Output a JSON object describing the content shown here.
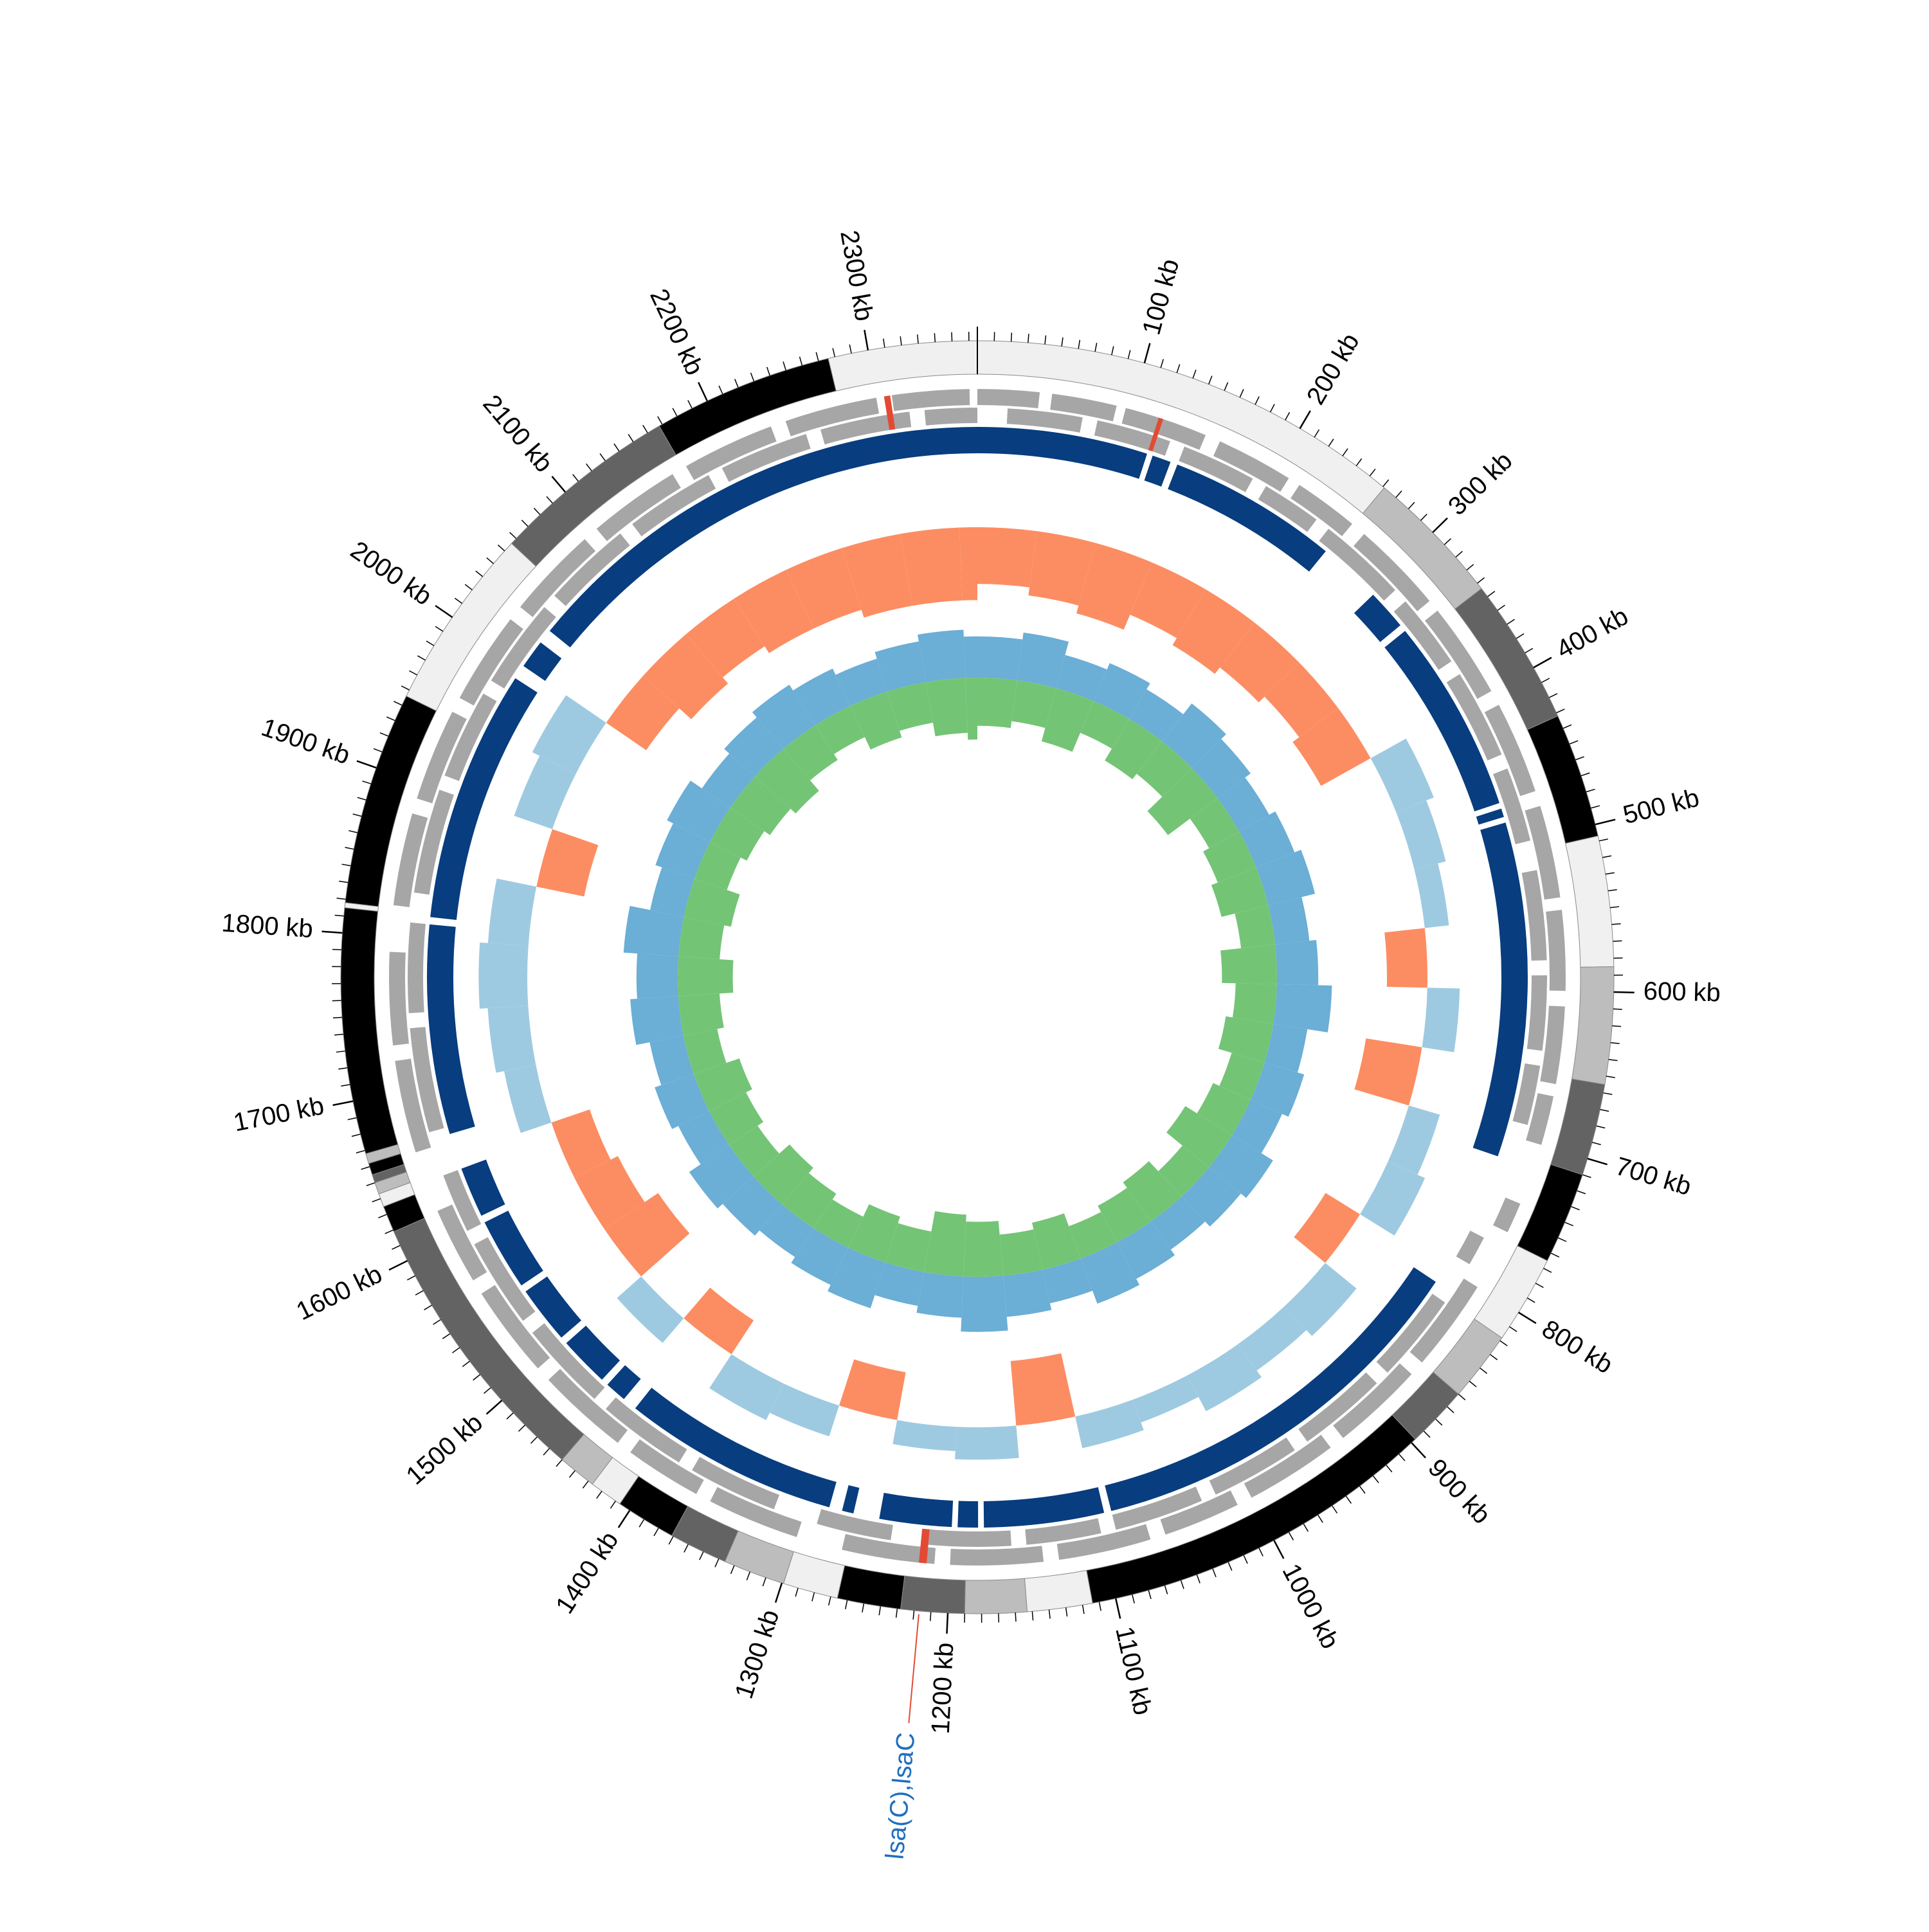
{
  "chart_data": {
    "type": "circular-genome",
    "xlim": [
      0,
      2365
    ],
    "xticks": [
      {
        "value": 100,
        "label": "100 kb"
      },
      {
        "value": 200,
        "label": "200 kb"
      },
      {
        "value": 300,
        "label": "300 kb"
      },
      {
        "value": 400,
        "label": "400 kb"
      },
      {
        "value": 500,
        "label": "500 kb"
      },
      {
        "value": 600,
        "label": "600 kb"
      },
      {
        "value": 700,
        "label": "700 kb"
      },
      {
        "value": 800,
        "label": "800 kb"
      },
      {
        "value": 900,
        "label": "900 kb"
      },
      {
        "value": 1000,
        "label": "1000 kb"
      },
      {
        "value": 1100,
        "label": "1100 kb"
      },
      {
        "value": 1200,
        "label": "1200 kb"
      },
      {
        "value": 1300,
        "label": "1300 kb"
      },
      {
        "value": 1400,
        "label": "1400 kb"
      },
      {
        "value": 1500,
        "label": "1500 kb"
      },
      {
        "value": 1600,
        "label": "1600 kb"
      },
      {
        "value": 1700,
        "label": "1700 kb"
      },
      {
        "value": 1800,
        "label": "1800 kb"
      },
      {
        "value": 1900,
        "label": "1900 kb"
      },
      {
        "value": 2000,
        "label": "2000 kb"
      },
      {
        "value": 2100,
        "label": "2100 kb"
      },
      {
        "value": 2200,
        "label": "2200 kb"
      },
      {
        "value": 2300,
        "label": "2300 kb"
      }
    ],
    "minor_ticks_every": 10,
    "contigs": [
      {
        "start": 0,
        "end": 261,
        "color": "#f0f0f0"
      },
      {
        "start": 261,
        "end": 344,
        "color": "#bdbdbd"
      },
      {
        "start": 344,
        "end": 432,
        "color": "#636363"
      },
      {
        "start": 432,
        "end": 507,
        "color": "#000000"
      },
      {
        "start": 507,
        "end": 585,
        "color": "#f0f0f0"
      },
      {
        "start": 585,
        "end": 655,
        "color": "#bdbdbd"
      },
      {
        "start": 655,
        "end": 710,
        "color": "#636363"
      },
      {
        "start": 710,
        "end": 765,
        "color": "#000000"
      },
      {
        "start": 765,
        "end": 818,
        "color": "#f0f0f0"
      },
      {
        "start": 818,
        "end": 860,
        "color": "#bdbdbd"
      },
      {
        "start": 860,
        "end": 897,
        "color": "#636363"
      },
      {
        "start": 897,
        "end": 1114,
        "color": "#000000"
      },
      {
        "start": 1114,
        "end": 1153,
        "color": "#f0f0f0"
      },
      {
        "start": 1153,
        "end": 1190,
        "color": "#bdbdbd"
      },
      {
        "start": 1190,
        "end": 1228,
        "color": "#636363"
      },
      {
        "start": 1228,
        "end": 1266,
        "color": "#000000"
      },
      {
        "start": 1266,
        "end": 1299,
        "color": "#f0f0f0"
      },
      {
        "start": 1299,
        "end": 1336,
        "color": "#bdbdbd"
      },
      {
        "start": 1336,
        "end": 1371,
        "color": "#636363"
      },
      {
        "start": 1371,
        "end": 1407,
        "color": "#000000"
      },
      {
        "start": 1407,
        "end": 1427,
        "color": "#f0f0f0"
      },
      {
        "start": 1427,
        "end": 1450,
        "color": "#bdbdbd"
      },
      {
        "start": 1450,
        "end": 1619,
        "color": "#636363"
      },
      {
        "start": 1619,
        "end": 1635,
        "color": "#000000"
      },
      {
        "start": 1635,
        "end": 1643,
        "color": "#f0f0f0"
      },
      {
        "start": 1643,
        "end": 1650,
        "color": "#bdbdbd"
      },
      {
        "start": 1650,
        "end": 1655,
        "color": "#636363"
      },
      {
        "start": 1655,
        "end": 1662,
        "color": "#000000"
      },
      {
        "start": 1662,
        "end": 1668,
        "color": "#bdbdbd"
      },
      {
        "start": 1668,
        "end": 1815,
        "color": "#000000"
      },
      {
        "start": 1815,
        "end": 1818,
        "color": "#f0f0f0"
      },
      {
        "start": 1818,
        "end": 1946,
        "color": "#000000"
      },
      {
        "start": 1946,
        "end": 2056,
        "color": "#f0f0f0"
      },
      {
        "start": 2056,
        "end": 2168,
        "color": "#636363"
      },
      {
        "start": 2168,
        "end": 2276,
        "color": "#000000"
      },
      {
        "start": 2276,
        "end": 2365,
        "color": "#f0f0f0"
      }
    ],
    "genes_forward": {
      "color": "#a6a6a6",
      "blocks": [
        [
          0,
          40
        ],
        [
          48,
          90
        ],
        [
          96,
          150
        ],
        [
          160,
          210
        ],
        [
          218,
          260
        ],
        [
          270,
          330
        ],
        [
          338,
          400
        ],
        [
          410,
          470
        ],
        [
          480,
          540
        ],
        [
          548,
          600
        ],
        [
          610,
          660
        ],
        [
          668,
          700
        ],
        [
          740,
          760
        ],
        [
          800,
          860
        ],
        [
          870,
          930
        ],
        [
          940,
          1000
        ],
        [
          1010,
          1060
        ],
        [
          1070,
          1130
        ],
        [
          1140,
          1200
        ],
        [
          1210,
          1270
        ],
        [
          1300,
          1360
        ],
        [
          1370,
          1420
        ],
        [
          1430,
          1490
        ],
        [
          1500,
          1560
        ],
        [
          1570,
          1620
        ],
        [
          1660,
          1720
        ],
        [
          1730,
          1790
        ],
        [
          1820,
          1880
        ],
        [
          1890,
          1950
        ],
        [
          1960,
          2020
        ],
        [
          2030,
          2090
        ],
        [
          2100,
          2160
        ],
        [
          2170,
          2230
        ],
        [
          2240,
          2300
        ],
        [
          2310,
          2360
        ]
      ]
    },
    "genes_reverse": {
      "color": "#a6a6a6",
      "blocks": [
        [
          20,
          70
        ],
        [
          80,
          130
        ],
        [
          140,
          190
        ],
        [
          200,
          240
        ],
        [
          250,
          310
        ],
        [
          320,
          370
        ],
        [
          380,
          440
        ],
        [
          450,
          500
        ],
        [
          520,
          580
        ],
        [
          590,
          640
        ],
        [
          650,
          690
        ],
        [
          770,
          790
        ],
        [
          820,
          880
        ],
        [
          890,
          950
        ],
        [
          960,
          1020
        ],
        [
          1030,
          1090
        ],
        [
          1100,
          1150
        ],
        [
          1160,
          1220
        ],
        [
          1240,
          1290
        ],
        [
          1320,
          1380
        ],
        [
          1390,
          1450
        ],
        [
          1460,
          1520
        ],
        [
          1530,
          1590
        ],
        [
          1600,
          1640
        ],
        [
          1670,
          1740
        ],
        [
          1750,
          1810
        ],
        [
          1830,
          1900
        ],
        [
          1910,
          1970
        ],
        [
          1980,
          2040
        ],
        [
          2050,
          2110
        ],
        [
          2120,
          2180
        ],
        [
          2190,
          2250
        ],
        [
          2260,
          2320
        ],
        [
          2330,
          2365
        ]
      ]
    },
    "resistance_genes": {
      "color": "#e34a33",
      "blocks": [
        [
          1215,
          1220
        ],
        [
          2305,
          2309
        ],
        [
          118,
          121
        ]
      ]
    },
    "hits": {
      "color": "#083d7f",
      "blocks": [
        [
          0,
          118
        ],
        [
          122,
          135
        ],
        [
          140,
          258
        ],
        [
          302,
          330
        ],
        [
          335,
          470
        ],
        [
          474,
          480
        ],
        [
          484,
          716
        ],
        [
          812,
          1090
        ],
        [
          1095,
          1178
        ],
        [
          1182,
          1196
        ],
        [
          1200,
          1250
        ],
        [
          1268,
          1276
        ],
        [
          1285,
          1435
        ],
        [
          1445,
          1460
        ],
        [
          1465,
          1500
        ],
        [
          1505,
          1545
        ],
        [
          1550,
          1600
        ],
        [
          1605,
          1640
        ],
        [
          1665,
          1810
        ],
        [
          1815,
          1990
        ],
        [
          2000,
          2020
        ],
        [
          2030,
          2365
        ]
      ]
    },
    "x": [
      0,
      50,
      100,
      150,
      200,
      250,
      300,
      350,
      400,
      450,
      500,
      550,
      600,
      650,
      700,
      750,
      800,
      850,
      900,
      950,
      1000,
      1050,
      1100,
      1150,
      1200,
      1250,
      1300,
      1350,
      1400,
      1450,
      1500,
      1550,
      1600,
      1650,
      1700,
      1750,
      1800,
      1850,
      1900,
      1950,
      2000,
      2050,
      2100,
      2150,
      2200,
      2250,
      2300,
      2350
    ],
    "gc_deviation": {
      "positive_color": "#9ecae1",
      "negative_color": "#fc8d62",
      "values": [
        -0.7,
        -0.8,
        -0.9,
        -0.7,
        -0.8,
        -0.7,
        -0.6,
        -0.7,
        0.5,
        0.4,
        0.3,
        -0.5,
        0.4,
        -0.7,
        0.4,
        0.5,
        -0.5,
        0.5,
        0.4,
        0.5,
        0.3,
        0.4,
        -0.8,
        0.4,
        0.3,
        -0.6,
        0.4,
        0.5,
        -0.5,
        0.4,
        -0.8,
        -0.6,
        -0.5,
        0.4,
        0.5,
        0.6,
        0.5,
        -0.6,
        0.5,
        0.6,
        -0.6,
        -0.8,
        -0.7,
        -0.8,
        -0.8,
        -0.9,
        -0.9,
        -0.9
      ]
    },
    "skew_outer": {
      "color": "#6baed6",
      "values": [
        0.6,
        0.7,
        0.5,
        0.6,
        0.5,
        0.7,
        0.6,
        0.5,
        0.6,
        0.7,
        0.5,
        0.6,
        0.8,
        0.5,
        0.6,
        0.5,
        0.7,
        0.6,
        0.5,
        0.6,
        0.7,
        0.5,
        0.6,
        0.8,
        0.6,
        0.5,
        0.7,
        0.6,
        0.5,
        0.6,
        0.7,
        0.5,
        0.6,
        0.5,
        0.7,
        0.6,
        0.8,
        0.5,
        0.6,
        0.7,
        0.5,
        0.6,
        0.7,
        0.6,
        0.5,
        0.6,
        0.7,
        0.6
      ]
    },
    "skew_inner": {
      "color": "#74c476",
      "values": [
        0.7,
        0.6,
        0.8,
        0.5,
        0.7,
        0.6,
        0.9,
        0.5,
        0.6,
        0.7,
        0.5,
        0.8,
        0.6,
        0.7,
        0.5,
        0.6,
        0.8,
        0.5,
        0.7,
        0.6,
        0.5,
        0.7,
        0.6,
        0.8,
        0.9,
        0.6,
        0.7,
        0.5,
        0.6,
        0.7,
        0.5,
        0.6,
        0.7,
        0.5,
        0.6,
        0.8,
        0.6,
        0.7,
        0.5,
        0.6,
        0.7,
        0.8,
        0.6,
        0.5,
        0.7,
        0.6,
        0.8,
        0.9
      ]
    },
    "annotation": {
      "text": "lsa(C),lsaC",
      "position": 1217,
      "text_color": "#1f6fbf",
      "line_color": "#e34a33"
    }
  }
}
